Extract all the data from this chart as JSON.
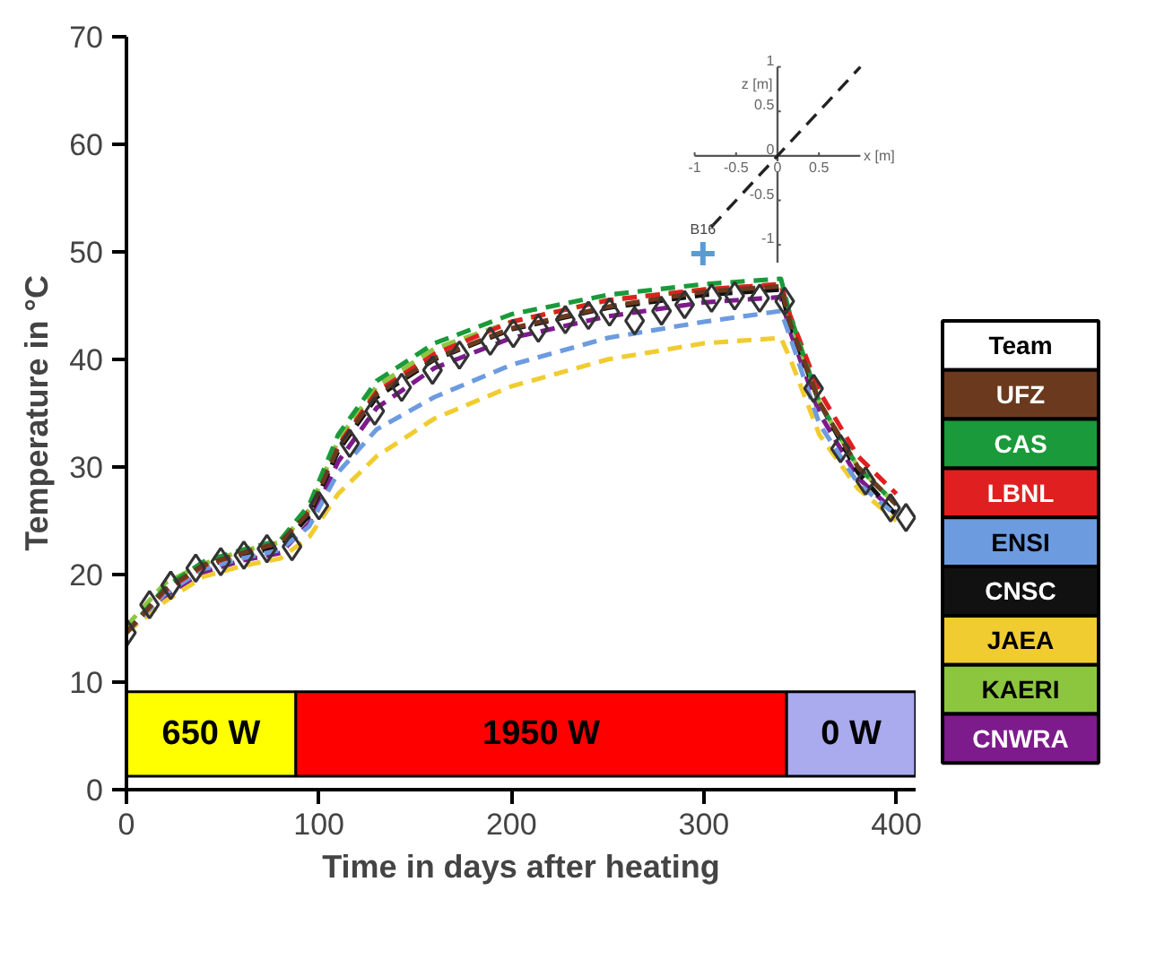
{
  "chart_data": [
    {
      "type": "line",
      "xlabel": "Time in days after heating",
      "ylabel": "Temperature in °C",
      "xlim": [
        0,
        410
      ],
      "ylim": [
        0,
        70
      ],
      "xticks": [
        0,
        100,
        200,
        300,
        400
      ],
      "yticks": [
        0,
        10,
        20,
        30,
        40,
        50,
        60,
        70
      ],
      "legend": "right",
      "legend_title": "Team",
      "line_style": "dashed",
      "bands": [
        {
          "axis": "x",
          "from": 0,
          "to": 88,
          "label": "650 W",
          "color": "#ffff00"
        },
        {
          "axis": "x",
          "from": 88,
          "to": 343,
          "label": "1950 W",
          "color": "#ff0000"
        },
        {
          "axis": "x",
          "from": 343,
          "to": 410,
          "label": "0 W",
          "color": "#aaaaee"
        }
      ],
      "x": [
        0,
        20,
        40,
        60,
        80,
        95,
        110,
        130,
        160,
        200,
        250,
        300,
        340,
        345,
        360,
        380,
        400
      ],
      "series": [
        {
          "type": "scatter",
          "marker": "diamond",
          "color": "#333333",
          "x": [
            0,
            12,
            23,
            36,
            49,
            61,
            73,
            86,
            100,
            116,
            129,
            143,
            159,
            173,
            189,
            201,
            214,
            228,
            240,
            251,
            264,
            278,
            290,
            304,
            316,
            329,
            342,
            357,
            371,
            384,
            397,
            405
          ],
          "values": [
            14.6,
            17.2,
            19.0,
            20.6,
            21.2,
            21.8,
            22.4,
            22.6,
            26.4,
            32.2,
            35.2,
            37.4,
            39.0,
            40.4,
            41.7,
            42.4,
            42.9,
            43.7,
            44.1,
            44.4,
            43.6,
            44.5,
            45.1,
            45.7,
            45.9,
            45.7,
            45.4,
            37.3,
            31.7,
            28.7,
            26.2,
            25.3
          ]
        },
        {
          "name": "UFZ",
          "color": "#6b3a1e",
          "values": [
            14.6,
            18.6,
            20.9,
            22.0,
            23.0,
            25.8,
            31.8,
            36.8,
            40.1,
            42.9,
            44.9,
            46.3,
            46.8,
            43.3,
            36.0,
            30.0,
            26.5
          ]
        },
        {
          "name": "CAS",
          "color": "#1a9a3a",
          "values": [
            14.6,
            18.8,
            21.2,
            22.3,
            23.2,
            26.5,
            33.0,
            38.0,
            41.5,
            44.2,
            46.0,
            47.0,
            47.5,
            44.0,
            36.0,
            30.0,
            26.5
          ]
        },
        {
          "name": "LBNL",
          "color": "#e02020",
          "values": [
            14.6,
            18.5,
            20.8,
            22.0,
            23.0,
            26.0,
            32.0,
            37.0,
            40.5,
            43.5,
            45.5,
            46.5,
            47.0,
            44.0,
            37.0,
            31.0,
            27.5
          ]
        },
        {
          "name": "ENSI",
          "color": "#6d9be0",
          "values": [
            14.6,
            18.2,
            20.5,
            21.5,
            22.3,
            24.5,
            29.5,
            33.5,
            36.5,
            39.5,
            42.0,
            43.5,
            44.5,
            42.0,
            34.0,
            28.5,
            25.5
          ]
        },
        {
          "name": "CNSC",
          "color": "#111111",
          "values": [
            14.6,
            18.5,
            20.7,
            21.8,
            22.6,
            25.5,
            31.5,
            36.5,
            40.0,
            42.8,
            44.8,
            46.0,
            46.5,
            43.0,
            36.0,
            29.5,
            25.5
          ]
        },
        {
          "name": "JAEA",
          "color": "#f0cc30",
          "values": [
            14.6,
            17.5,
            19.8,
            20.8,
            21.5,
            23.5,
            27.5,
            31.0,
            34.5,
            37.5,
            40.0,
            41.5,
            42.0,
            40.0,
            33.0,
            28.0,
            25.0
          ]
        },
        {
          "name": "KAERI",
          "color": "#8cc63f",
          "values": [
            15.2,
            19.2,
            21.0,
            22.2,
            23.0,
            26.0,
            32.5,
            37.5,
            41.0,
            43.5,
            45.5,
            46.5,
            47.0,
            43.5,
            36.0,
            30.0,
            26.5
          ]
        },
        {
          "name": "CNWRA",
          "color": "#7d1a8c",
          "values": [
            14.6,
            18.0,
            20.2,
            21.3,
            22.0,
            24.8,
            30.5,
            35.5,
            39.2,
            42.0,
            44.0,
            45.3,
            45.8,
            42.5,
            35.0,
            29.0,
            25.7
          ]
        }
      ]
    },
    {
      "type": "line",
      "xlabel": "x [m]",
      "ylabel": "z [m]",
      "xlim": [
        -1,
        1
      ],
      "ylim": [
        -1.2,
        1
      ],
      "xticks": [
        -1,
        -0.5,
        0,
        0.5
      ],
      "yticks": [
        -1,
        -0.5,
        0,
        0.5,
        1
      ],
      "annotations": [
        {
          "text": "B16",
          "x": -0.9,
          "y": -1.1
        }
      ],
      "series": [
        {
          "color": "#222222",
          "line_style": "dashed",
          "x": [
            -0.8,
            1
          ],
          "values": [
            -0.8,
            1
          ]
        },
        {
          "type": "scatter",
          "marker": "cross",
          "color": "#5b9bd5",
          "x": [
            -0.9
          ],
          "values": [
            -1.1
          ]
        }
      ]
    }
  ]
}
